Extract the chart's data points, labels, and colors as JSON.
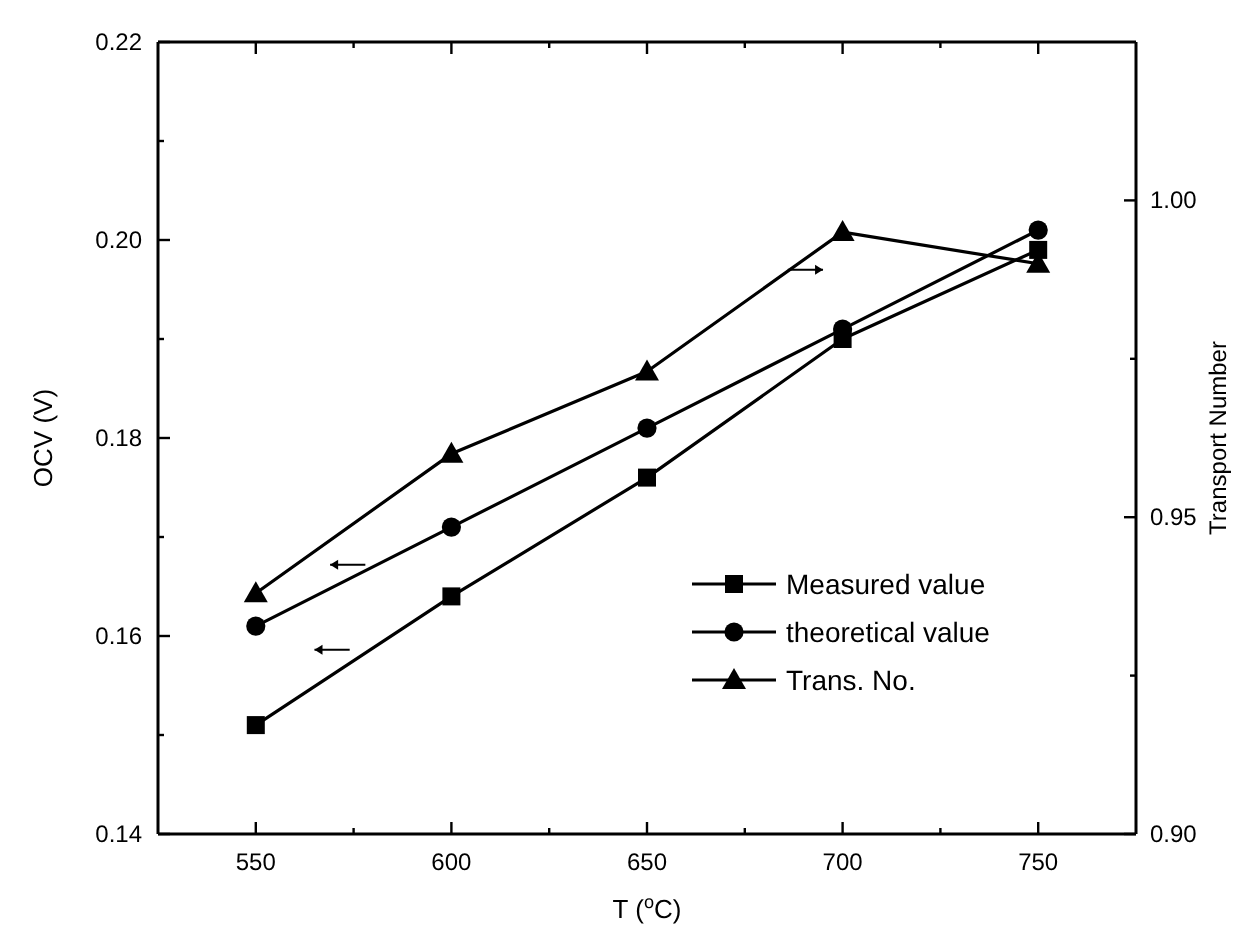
{
  "chart_data": {
    "type": "line",
    "xlabel": "T ($^{o}$C)",
    "ylabel": "OCV (V)",
    "y2label": "Transport Number",
    "x": [
      550,
      600,
      650,
      700,
      750
    ],
    "xlim": [
      525,
      775
    ],
    "xticks": [
      550,
      {
        "value": 575,
        "label": null
      },
      600,
      {
        "value": 625,
        "label": null
      },
      650,
      {
        "value": 675,
        "label": null
      },
      700,
      {
        "value": 725,
        "label": null
      },
      750
    ],
    "ylim": [
      0.14,
      0.22
    ],
    "yticks": [
      {
        "value": 0.14,
        "label": "0.14"
      },
      {
        "value": 0.15,
        "label": null
      },
      {
        "value": 0.16,
        "label": "0.16"
      },
      {
        "value": 0.17,
        "label": null
      },
      {
        "value": 0.18,
        "label": "0.18"
      },
      {
        "value": 0.19,
        "label": null
      },
      {
        "value": 0.2,
        "label": "0.20"
      },
      {
        "value": 0.21,
        "label": null
      },
      {
        "value": 0.22,
        "label": "0.22"
      }
    ],
    "y2lim": [
      0.9,
      1.025
    ],
    "y2ticks": [
      {
        "value": 0.9,
        "label": "0.90"
      },
      {
        "value": 0.925,
        "label": null
      },
      0.95,
      {
        "value": 0.975,
        "label": null
      },
      {
        "value": 1.0,
        "label": "1.00"
      }
    ],
    "legend": "bottom right",
    "grid": false,
    "line_style": "solid",
    "series": [
      {
        "name": "Measured value",
        "color": "#000000",
        "marker": "square",
        "values": [
          0.151,
          0.164,
          0.176,
          0.19,
          0.199
        ]
      },
      {
        "name": "theoretical value",
        "color": "#000000",
        "marker": "circle",
        "values": [
          0.161,
          0.171,
          0.181,
          0.191,
          0.201
        ]
      },
      {
        "name": "Trans. No.",
        "color": "#000000",
        "marker": "triangle",
        "axis": "y2",
        "values": [
          0.938,
          0.96,
          0.973,
          0.995,
          0.99
        ]
      }
    ]
  }
}
